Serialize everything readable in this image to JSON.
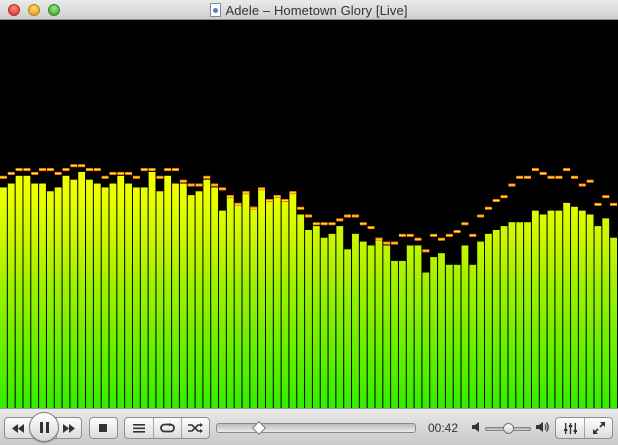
{
  "window": {
    "title": "Adele – Hometown Glory [Live]"
  },
  "visualizer": {
    "type": "spectrum-bars",
    "colors": {
      "background": "#000000",
      "top": "#ffff00",
      "bottom": "#33ee00",
      "peak": "#ff7a00",
      "peak_core": "#ffee33"
    },
    "bar_levels": [
      0.57,
      0.58,
      0.6,
      0.6,
      0.58,
      0.58,
      0.56,
      0.57,
      0.6,
      0.59,
      0.61,
      0.59,
      0.58,
      0.57,
      0.58,
      0.6,
      0.58,
      0.57,
      0.57,
      0.61,
      0.56,
      0.6,
      0.58,
      0.58,
      0.55,
      0.56,
      0.59,
      0.57,
      0.51,
      0.55,
      0.53,
      0.56,
      0.52,
      0.57,
      0.54,
      0.55,
      0.54,
      0.56,
      0.5,
      0.46,
      0.47,
      0.44,
      0.45,
      0.47,
      0.41,
      0.45,
      0.43,
      0.42,
      0.44,
      0.42,
      0.38,
      0.38,
      0.42,
      0.42,
      0.35,
      0.39,
      0.4,
      0.37,
      0.37,
      0.42,
      0.37,
      0.43,
      0.45,
      0.46,
      0.47,
      0.48,
      0.48,
      0.48,
      0.51,
      0.5,
      0.51,
      0.51,
      0.53,
      0.52,
      0.51,
      0.5,
      0.47,
      0.49,
      0.44
    ],
    "peak_levels": [
      0.6,
      0.61,
      0.62,
      0.62,
      0.61,
      0.62,
      0.62,
      0.61,
      0.62,
      0.63,
      0.63,
      0.62,
      0.62,
      0.6,
      0.61,
      0.61,
      0.61,
      0.6,
      0.62,
      0.62,
      0.6,
      0.62,
      0.62,
      0.59,
      0.58,
      0.58,
      0.6,
      0.58,
      0.57,
      0.55,
      0.53,
      0.56,
      0.52,
      0.57,
      0.54,
      0.55,
      0.54,
      0.56,
      0.52,
      0.5,
      0.48,
      0.48,
      0.48,
      0.49,
      0.5,
      0.5,
      0.48,
      0.47,
      0.44,
      0.43,
      0.43,
      0.45,
      0.45,
      0.44,
      0.41,
      0.45,
      0.44,
      0.45,
      0.46,
      0.48,
      0.45,
      0.5,
      0.52,
      0.54,
      0.55,
      0.58,
      0.6,
      0.6,
      0.62,
      0.61,
      0.6,
      0.6,
      0.62,
      0.6,
      0.58,
      0.59,
      0.53,
      0.55,
      0.53
    ]
  },
  "controls": {
    "rewind_icon": "rewind-icon",
    "play_pause_icon": "pause-icon",
    "fast_forward_icon": "fast-forward-icon",
    "stop_icon": "stop-icon",
    "playlist_icon": "playlist-icon",
    "repeat_icon": "repeat-icon",
    "shuffle_icon": "shuffle-icon",
    "seek_progress": 0.21,
    "time": "00:42",
    "volume_low_icon": "speaker-low-icon",
    "volume_high_icon": "speaker-high-icon",
    "volume_level": 0.5,
    "equalizer_icon": "equalizer-icon",
    "fullscreen_icon": "fullscreen-icon"
  }
}
